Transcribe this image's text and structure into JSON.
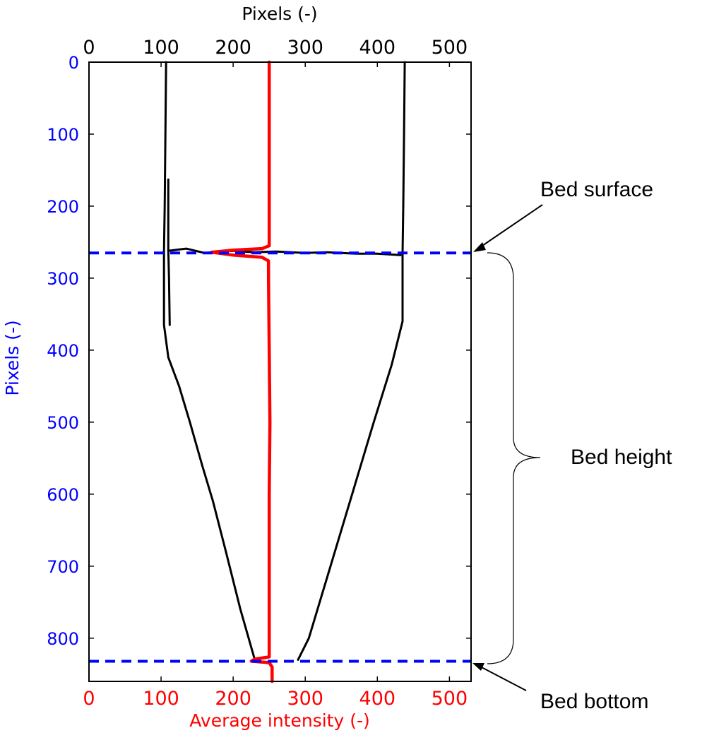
{
  "chart_data": {
    "type": "line",
    "title": "",
    "x_top": {
      "label": "Pixels (-)",
      "range": [
        0,
        530
      ],
      "ticks": [
        "0",
        "100",
        "200",
        "300",
        "400",
        "500"
      ]
    },
    "x_bottom": {
      "label": "Average intensity (-)",
      "range": [
        0,
        530
      ],
      "ticks": [
        "0",
        "100",
        "200",
        "300",
        "400",
        "500"
      ],
      "color": "#ff0000"
    },
    "y": {
      "label": "Pixels (-)",
      "range": [
        0,
        860
      ],
      "inverted": true,
      "ticks": [
        "0",
        "100",
        "200",
        "300",
        "400",
        "500",
        "600",
        "700",
        "800"
      ],
      "color": "#0000ff"
    },
    "series": [
      {
        "color": "#000000",
        "role": "left-wall",
        "points": [
          [
            107,
            0
          ],
          [
            106,
            100
          ],
          [
            105,
            200
          ],
          [
            104,
            262
          ],
          [
            104,
            300
          ],
          [
            104,
            365
          ],
          [
            110,
            410
          ],
          [
            125,
            450
          ],
          [
            140,
            500
          ],
          [
            157,
            560
          ],
          [
            172,
            610
          ],
          [
            190,
            680
          ],
          [
            210,
            760
          ],
          [
            230,
            830
          ]
        ]
      },
      {
        "color": "#000000",
        "role": "right-wall",
        "points": [
          [
            438,
            0
          ],
          [
            437,
            100
          ],
          [
            436,
            200
          ],
          [
            435,
            265
          ],
          [
            435,
            360
          ],
          [
            420,
            420
          ],
          [
            395,
            500
          ],
          [
            365,
            600
          ],
          [
            335,
            700
          ],
          [
            305,
            800
          ],
          [
            290,
            830
          ]
        ]
      },
      {
        "color": "#000000",
        "role": "bed-surface-edge",
        "points": [
          [
            110,
            262
          ],
          [
            135,
            259
          ],
          [
            160,
            265
          ],
          [
            200,
            262
          ],
          [
            230,
            264
          ],
          [
            260,
            263
          ],
          [
            300,
            265
          ],
          [
            330,
            264
          ],
          [
            370,
            266
          ],
          [
            400,
            266
          ],
          [
            432,
            268
          ]
        ]
      },
      {
        "color": "#000000",
        "role": "inner-left-line",
        "points": [
          [
            110,
            163
          ],
          [
            110,
            260
          ],
          [
            111,
            300
          ],
          [
            112,
            365
          ]
        ]
      },
      {
        "color": "#ff0000",
        "role": "average-intensity",
        "points": [
          [
            250,
            0
          ],
          [
            250,
            100
          ],
          [
            250,
            200
          ],
          [
            250,
            255
          ],
          [
            240,
            259
          ],
          [
            200,
            261
          ],
          [
            170,
            264
          ],
          [
            200,
            268
          ],
          [
            240,
            271
          ],
          [
            249,
            276
          ],
          [
            249,
            300
          ],
          [
            250,
            400
          ],
          [
            251,
            500
          ],
          [
            250,
            600
          ],
          [
            250,
            700
          ],
          [
            250,
            800
          ],
          [
            250,
            826
          ],
          [
            230,
            829
          ],
          [
            225,
            832
          ],
          [
            250,
            834
          ],
          [
            254,
            840
          ],
          [
            254,
            860
          ]
        ]
      }
    ],
    "reference_lines": [
      {
        "y": 265,
        "color": "#0000ff",
        "style": "dashed"
      },
      {
        "y": 832,
        "color": "#0000ff",
        "style": "dashed"
      }
    ],
    "annotations": [
      {
        "text": "Bed surface",
        "points_to_y": 265
      },
      {
        "text": "Bed height",
        "brace_from_y": 265,
        "brace_to_y": 832
      },
      {
        "text": "Bed bottom",
        "points_to_y": 832
      }
    ],
    "grid": false,
    "legend": "none"
  }
}
